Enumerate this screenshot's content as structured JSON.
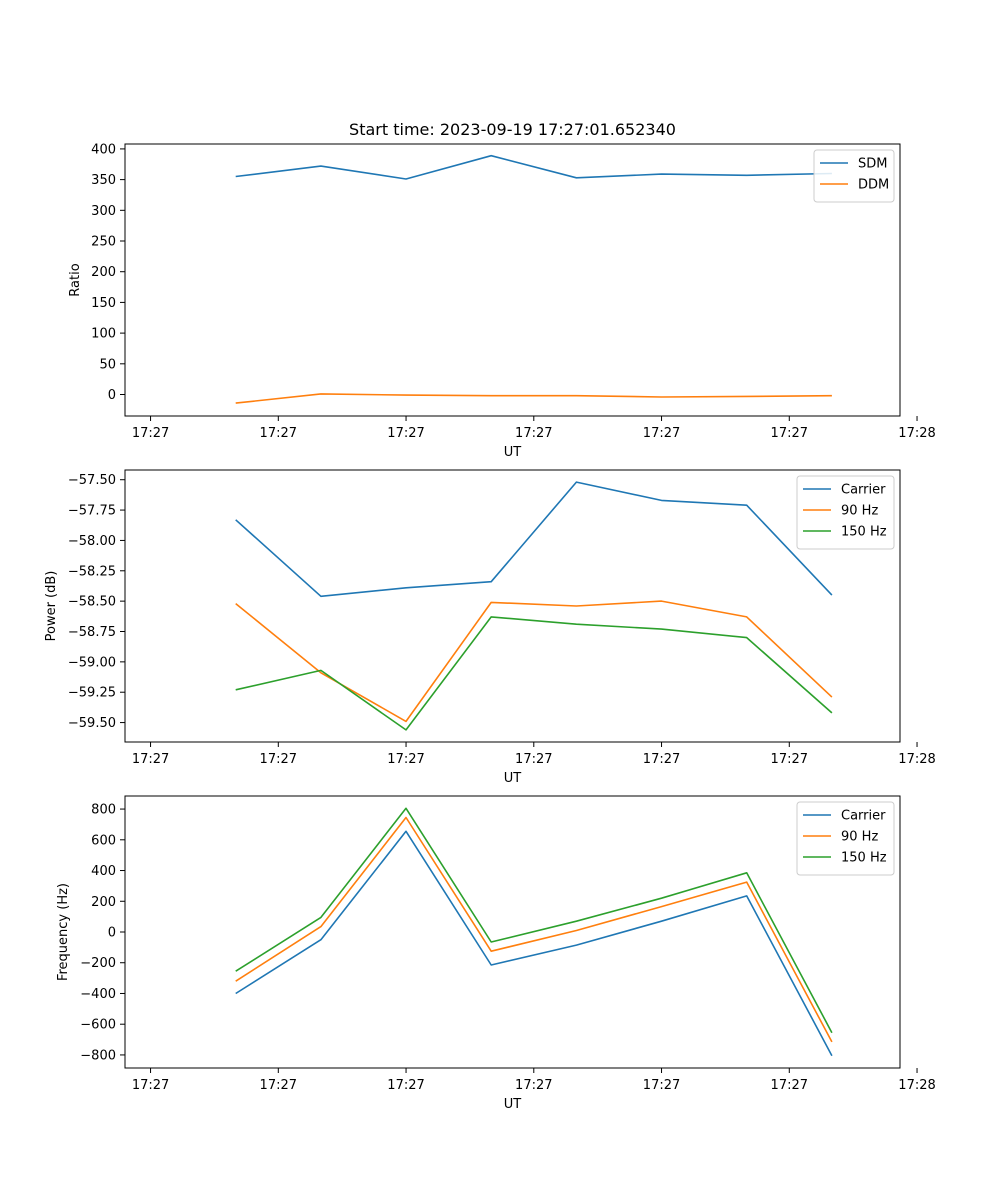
{
  "chart_data": [
    {
      "type": "line",
      "title": "Start time: 2023-09-19 17:27:01.652340",
      "xlabel": "UT",
      "ylabel": "Ratio",
      "x_tick_labels": [
        "17:27",
        "17:27",
        "17:27",
        "17:27",
        "17:27",
        "17:27",
        "17:28"
      ],
      "xlim": [
        -0.3,
        8.8
      ],
      "ylim": [
        -35,
        408
      ],
      "yticks": [
        0,
        50,
        100,
        150,
        200,
        250,
        300,
        350,
        400
      ],
      "ytick_labels": [
        "0",
        "50",
        "100",
        "150",
        "200",
        "250",
        "300",
        "350",
        "400"
      ],
      "legend_position": "top-right",
      "x": [
        1,
        2,
        3,
        4,
        5,
        6,
        7,
        8
      ],
      "series": [
        {
          "name": "SDM",
          "color": "#1f77b4",
          "values": [
            355,
            372,
            351,
            389,
            353,
            359,
            357,
            360
          ]
        },
        {
          "name": "DDM",
          "color": "#ff7f0e",
          "values": [
            -14,
            1,
            -1,
            -2,
            -2,
            -4,
            -3,
            -2
          ]
        }
      ]
    },
    {
      "type": "line",
      "title": "",
      "xlabel": "UT",
      "ylabel": "Power (dB)",
      "x_tick_labels": [
        "17:27",
        "17:27",
        "17:27",
        "17:27",
        "17:27",
        "17:27",
        "17:28"
      ],
      "xlim": [
        -0.3,
        8.8
      ],
      "ylim": [
        -59.66,
        -57.42
      ],
      "yticks": [
        -59.5,
        -59.25,
        -59.0,
        -58.75,
        -58.5,
        -58.25,
        -58.0,
        -57.75,
        -57.5
      ],
      "ytick_labels": [
        "−59.50",
        "−59.25",
        "−59.00",
        "−58.75",
        "−58.50",
        "−58.25",
        "−58.00",
        "−57.75",
        "−57.50"
      ],
      "legend_position": "top-right",
      "x": [
        1,
        2,
        3,
        4,
        5,
        6,
        7,
        8
      ],
      "series": [
        {
          "name": "Carrier",
          "color": "#1f77b4",
          "values": [
            -57.83,
            -58.46,
            -58.39,
            -58.34,
            -57.52,
            -57.67,
            -57.71,
            -58.45
          ]
        },
        {
          "name": "90 Hz",
          "color": "#ff7f0e",
          "values": [
            -58.52,
            -59.09,
            -59.49,
            -58.51,
            -58.54,
            -58.5,
            -58.63,
            -59.29
          ]
        },
        {
          "name": "150 Hz",
          "color": "#2ca02c",
          "values": [
            -59.23,
            -59.07,
            -59.56,
            -58.63,
            -58.69,
            -58.73,
            -58.8,
            -59.42
          ]
        }
      ]
    },
    {
      "type": "line",
      "title": "",
      "xlabel": "UT",
      "ylabel": "Frequency (Hz)",
      "x_tick_labels": [
        "17:27",
        "17:27",
        "17:27",
        "17:27",
        "17:27",
        "17:27",
        "17:28"
      ],
      "xlim": [
        -0.3,
        8.8
      ],
      "ylim": [
        -885,
        885
      ],
      "yticks": [
        -800,
        -600,
        -400,
        -200,
        0,
        200,
        400,
        600,
        800
      ],
      "ytick_labels": [
        "−800",
        "−600",
        "−400",
        "−200",
        "0",
        "200",
        "400",
        "600",
        "800"
      ],
      "legend_position": "top-right",
      "x": [
        1,
        2,
        3,
        4,
        5,
        6,
        7,
        8
      ],
      "series": [
        {
          "name": "Carrier",
          "color": "#1f77b4",
          "values": [
            -400,
            -50,
            655,
            -215,
            -85,
            70,
            235,
            -805
          ]
        },
        {
          "name": "90 Hz",
          "color": "#ff7f0e",
          "values": [
            -320,
            35,
            745,
            -125,
            10,
            165,
            325,
            -715
          ]
        },
        {
          "name": "150 Hz",
          "color": "#2ca02c",
          "values": [
            -255,
            95,
            805,
            -65,
            70,
            220,
            385,
            -655
          ]
        }
      ]
    }
  ]
}
